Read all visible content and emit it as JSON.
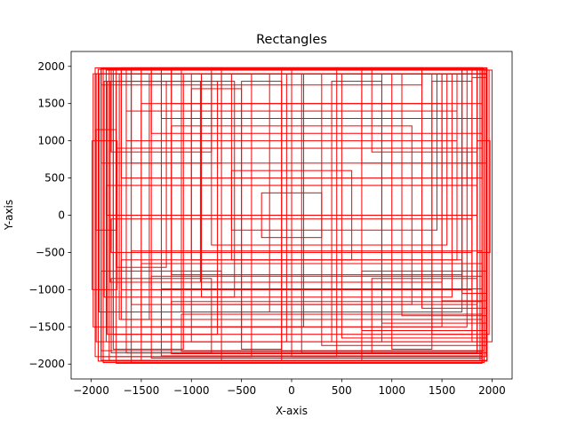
{
  "chart_data": {
    "type": "rectangles",
    "title": "Rectangles",
    "xlabel": "X-axis",
    "ylabel": "Y-axis",
    "xlim": [
      -2200,
      2200
    ],
    "ylim": [
      -2200,
      2200
    ],
    "xticks": [
      {
        "value": -2000,
        "label": "−2000"
      },
      {
        "value": -1500,
        "label": "−1500"
      },
      {
        "value": -1000,
        "label": "−1000"
      },
      {
        "value": -500,
        "label": "−500"
      },
      {
        "value": 0,
        "label": "0"
      },
      {
        "value": 500,
        "label": "500"
      },
      {
        "value": 1000,
        "label": "1000"
      },
      {
        "value": 1500,
        "label": "1500"
      },
      {
        "value": 2000,
        "label": "2000"
      }
    ],
    "yticks": [
      {
        "value": -2000,
        "label": "−2000"
      },
      {
        "value": -1500,
        "label": "−1500"
      },
      {
        "value": -1000,
        "label": "−1000"
      },
      {
        "value": -500,
        "label": "−500"
      },
      {
        "value": 0,
        "label": "0"
      },
      {
        "value": 500,
        "label": "500"
      },
      {
        "value": 1000,
        "label": "1000"
      },
      {
        "value": 1500,
        "label": "1500"
      },
      {
        "value": 2000,
        "label": "2000"
      }
    ],
    "grid": false,
    "edge_color": "#ff0000",
    "fill": "none",
    "rectangles": [
      {
        "x": -1960,
        "y": -1900,
        "width": 3900,
        "height": 3880
      },
      {
        "x": -1930,
        "y": -1960,
        "width": 3880,
        "height": 3920
      },
      {
        "x": -1900,
        "y": -1820,
        "width": 3820,
        "height": 3790
      },
      {
        "x": -1880,
        "y": -1980,
        "width": 3800,
        "height": 3960
      },
      {
        "x": -1850,
        "y": -1700,
        "width": 3850,
        "height": 3650
      },
      {
        "x": -1820,
        "y": -1950,
        "width": 3700,
        "height": 3900
      },
      {
        "x": -1780,
        "y": -1600,
        "width": 3750,
        "height": 3550
      },
      {
        "x": -1750,
        "y": -1990,
        "width": 3650,
        "height": 3970
      },
      {
        "x": -1700,
        "y": -1400,
        "width": 3600,
        "height": 3380
      },
      {
        "x": -1650,
        "y": -1850,
        "width": 3500,
        "height": 3800
      },
      {
        "x": -1600,
        "y": -1200,
        "width": 3450,
        "height": 3150
      },
      {
        "x": -1500,
        "y": -1700,
        "width": 3350,
        "height": 3650
      },
      {
        "x": -1400,
        "y": -1000,
        "width": 3200,
        "height": 2950
      },
      {
        "x": -1300,
        "y": -1500,
        "width": 3050,
        "height": 3450
      },
      {
        "x": -1200,
        "y": -800,
        "width": 2900,
        "height": 2750
      },
      {
        "x": -1100,
        "y": -1300,
        "width": 2800,
        "height": 3250
      },
      {
        "x": -1000,
        "y": -600,
        "width": 2650,
        "height": 2500
      },
      {
        "x": -900,
        "y": -1100,
        "width": 2500,
        "height": 3000
      },
      {
        "x": -800,
        "y": -400,
        "width": 2350,
        "height": 2300
      },
      {
        "x": -700,
        "y": -900,
        "width": 2200,
        "height": 2800
      },
      {
        "x": -600,
        "y": -200,
        "width": 2050,
        "height": 2100
      },
      {
        "x": -1980,
        "y": -1500,
        "width": 2100,
        "height": 3400
      },
      {
        "x": -1950,
        "y": -1700,
        "width": 1900,
        "height": 3600
      },
      {
        "x": -1920,
        "y": -1300,
        "width": 1700,
        "height": 3200
      },
      {
        "x": -1900,
        "y": -1900,
        "width": 1500,
        "height": 3800
      },
      {
        "x": -1870,
        "y": -1100,
        "width": 1300,
        "height": 2900
      },
      {
        "x": -1840,
        "y": -1600,
        "width": 1100,
        "height": 3400
      },
      {
        "x": -1810,
        "y": -900,
        "width": 900,
        "height": 2700
      },
      {
        "x": -1780,
        "y": -1800,
        "width": 700,
        "height": 3700
      },
      {
        "x": -1750,
        "y": -700,
        "width": 500,
        "height": 2500
      },
      {
        "x": -1720,
        "y": -1400,
        "width": 300,
        "height": 3300
      },
      {
        "x": -100,
        "y": -1950,
        "width": 2050,
        "height": 3900
      },
      {
        "x": 100,
        "y": -1850,
        "width": 1850,
        "height": 3750
      },
      {
        "x": 300,
        "y": -1750,
        "width": 1650,
        "height": 3650
      },
      {
        "x": 500,
        "y": -1650,
        "width": 1450,
        "height": 3550
      },
      {
        "x": 700,
        "y": -1550,
        "width": 1250,
        "height": 3450
      },
      {
        "x": 900,
        "y": -1450,
        "width": 1050,
        "height": 3350
      },
      {
        "x": 1100,
        "y": -1350,
        "width": 850,
        "height": 3250
      },
      {
        "x": 1300,
        "y": -1250,
        "width": 650,
        "height": 3150
      },
      {
        "x": 1500,
        "y": -1150,
        "width": 450,
        "height": 3050
      },
      {
        "x": 1700,
        "y": -1050,
        "width": 250,
        "height": 2950
      },
      {
        "x": -1600,
        "y": -1980,
        "width": 3500,
        "height": 1500
      },
      {
        "x": -1500,
        "y": -1950,
        "width": 3400,
        "height": 1300
      },
      {
        "x": -1400,
        "y": -1920,
        "width": 3300,
        "height": 1100
      },
      {
        "x": -1300,
        "y": -1890,
        "width": 3200,
        "height": 900
      },
      {
        "x": -1200,
        "y": -1860,
        "width": 3100,
        "height": 700
      },
      {
        "x": -1100,
        "y": -1830,
        "width": 3000,
        "height": 500
      },
      {
        "x": -1700,
        "y": 500,
        "width": 3600,
        "height": 1480
      },
      {
        "x": -1600,
        "y": 700,
        "width": 3500,
        "height": 1280
      },
      {
        "x": -1500,
        "y": 900,
        "width": 3400,
        "height": 1080
      },
      {
        "x": -1400,
        "y": 1100,
        "width": 3300,
        "height": 880
      },
      {
        "x": -1300,
        "y": 1300,
        "width": 3200,
        "height": 680
      },
      {
        "x": -1200,
        "y": 1500,
        "width": 3100,
        "height": 480
      },
      {
        "x": -1900,
        "y": -1950,
        "width": 1200,
        "height": 1200
      },
      {
        "x": -1800,
        "y": -1850,
        "width": 1000,
        "height": 1000
      },
      {
        "x": 700,
        "y": -1950,
        "width": 1250,
        "height": 1200
      },
      {
        "x": 800,
        "y": -1850,
        "width": 1050,
        "height": 1000
      },
      {
        "x": -1900,
        "y": 700,
        "width": 1200,
        "height": 1280
      },
      {
        "x": -1800,
        "y": 850,
        "width": 1000,
        "height": 1100
      },
      {
        "x": 700,
        "y": 700,
        "width": 1250,
        "height": 1280
      },
      {
        "x": 800,
        "y": 850,
        "width": 1050,
        "height": 1100
      },
      {
        "x": -1500,
        "y": -1500,
        "width": 3000,
        "height": 3000
      },
      {
        "x": -1200,
        "y": -1200,
        "width": 2400,
        "height": 2400
      },
      {
        "x": -900,
        "y": -900,
        "width": 1800,
        "height": 1800
      },
      {
        "x": -600,
        "y": -600,
        "width": 1200,
        "height": 1200
      },
      {
        "x": -300,
        "y": -300,
        "width": 600,
        "height": 600
      },
      {
        "x": -1000,
        "y": -1700,
        "width": 500,
        "height": 3400
      },
      {
        "x": -500,
        "y": -1800,
        "width": 400,
        "height": 3600
      },
      {
        "x": 0,
        "y": -1900,
        "width": 450,
        "height": 3850
      },
      {
        "x": 400,
        "y": -1700,
        "width": 500,
        "height": 3500
      },
      {
        "x": 1000,
        "y": -1800,
        "width": 400,
        "height": 3700
      },
      {
        "x": 1400,
        "y": -1600,
        "width": 400,
        "height": 3400
      },
      {
        "x": -1700,
        "y": -1000,
        "width": 3400,
        "height": 400
      },
      {
        "x": -1800,
        "y": -500,
        "width": 3600,
        "height": 450
      },
      {
        "x": -1850,
        "y": 0,
        "width": 3700,
        "height": 400
      },
      {
        "x": -1750,
        "y": 400,
        "width": 3500,
        "height": 500
      },
      {
        "x": -1650,
        "y": 1000,
        "width": 3300,
        "height": 400
      },
      {
        "x": -1900,
        "y": 1750,
        "width": 3200,
        "height": 230
      },
      {
        "x": -1950,
        "y": -200,
        "width": 200,
        "height": 1350
      },
      {
        "x": 1850,
        "y": -500,
        "width": 130,
        "height": 1500
      },
      {
        "x": 1800,
        "y": -1700,
        "width": 150,
        "height": 3550
      },
      {
        "x": -1990,
        "y": -1000,
        "width": 250,
        "height": 2000
      }
    ]
  }
}
